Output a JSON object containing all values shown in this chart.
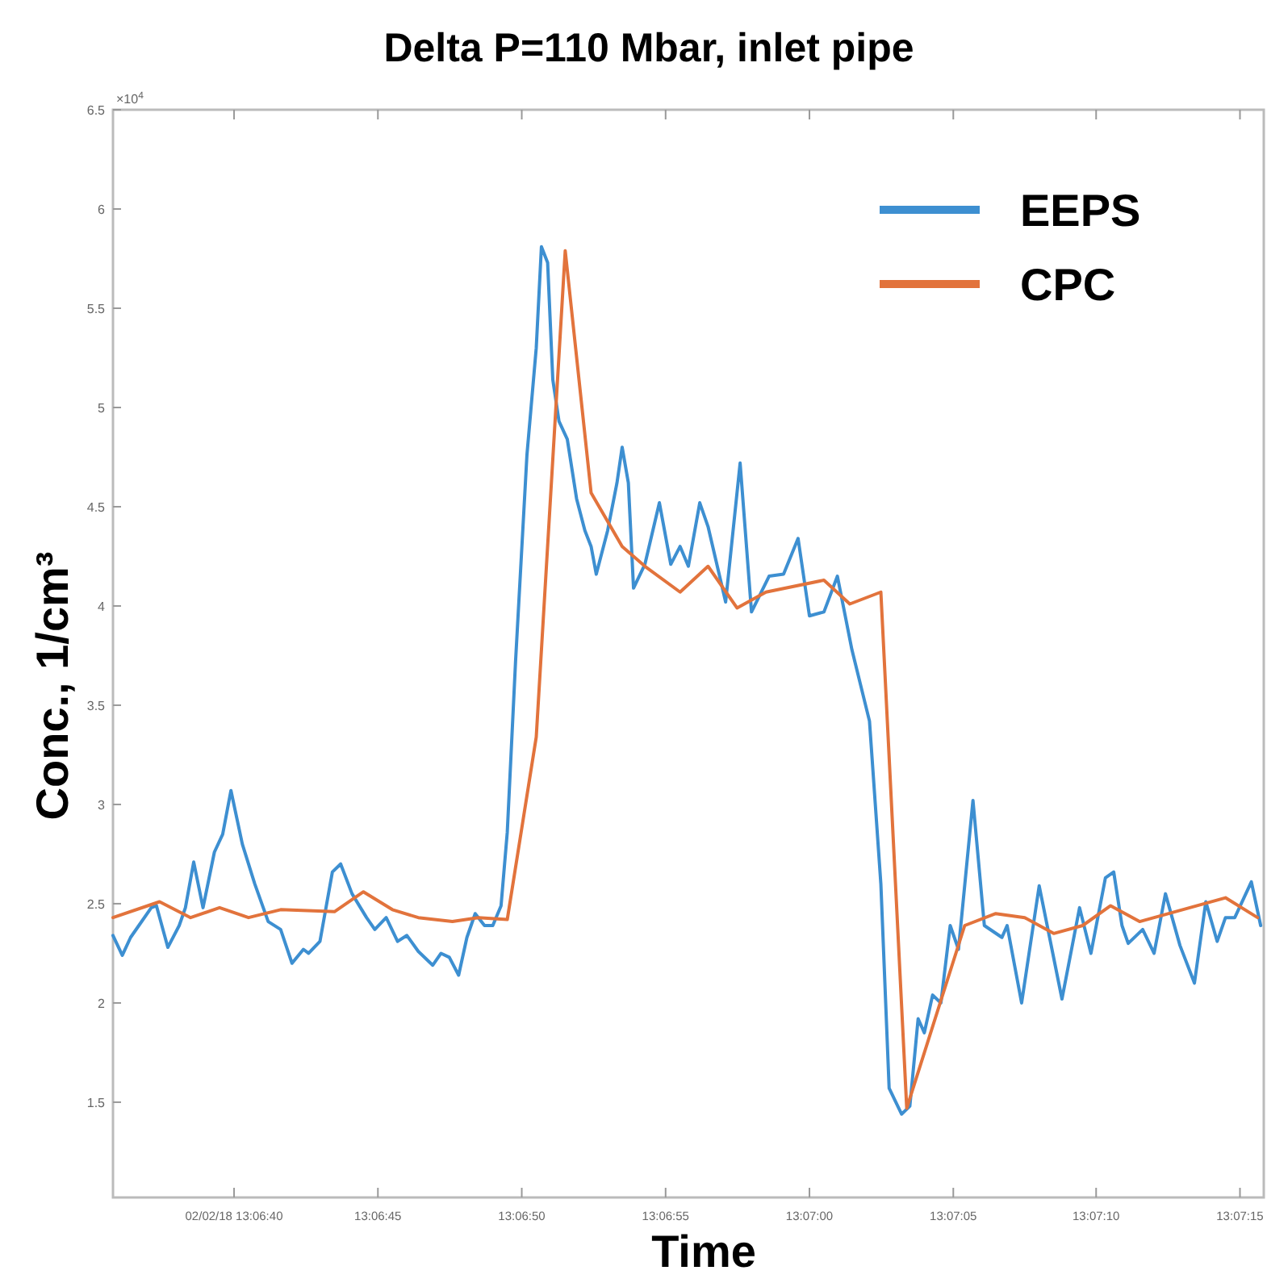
{
  "chart_data": {
    "type": "line",
    "title": "Delta P=110 Mbar, inlet pipe",
    "xlabel": "Time",
    "ylabel": "Conc., 1/cm³",
    "annotations": [
      "×10$^{4}$"
    ],
    "xlim": [
      13.10994,
      13.12106
    ],
    "xticks": [
      {
        "value": 13.11111,
        "label": "02/02/18 13:06:40"
      },
      {
        "value": 13.1125,
        "label": "13:06:45"
      },
      {
        "value": 13.11389,
        "label": "13:06:50"
      },
      {
        "value": 13.11528,
        "label": "13:06:55"
      },
      {
        "value": 13.11667,
        "label": "13:07:00"
      },
      {
        "value": 13.11806,
        "label": "13:07:05"
      },
      {
        "value": 13.11944,
        "label": "13:07:10"
      },
      {
        "value": 13.12083,
        "label": "13:07:15"
      }
    ],
    "ylim": [
      1.02,
      6.5
    ],
    "yticks": [
      1.5,
      2,
      2.5,
      3,
      3.5,
      4,
      4.5,
      5,
      5.5,
      6,
      6.5
    ],
    "grid": false,
    "legend": "top right",
    "marker": "none",
    "line_style": "solid",
    "series": [
      {
        "name": "EEPS",
        "color": "#3d8fd1",
        "x": [
          13.10994,
          13.11003,
          13.11011,
          13.11019,
          13.11031,
          13.11036,
          13.11047,
          13.11058,
          13.11064,
          13.11072,
          13.11081,
          13.11092,
          13.111,
          13.11108,
          13.11119,
          13.11131,
          13.11144,
          13.11156,
          13.11167,
          13.11178,
          13.11183,
          13.11194,
          13.11206,
          13.11214,
          13.11225,
          13.11239,
          13.11247,
          13.11258,
          13.11269,
          13.11278,
          13.11289,
          13.11303,
          13.11311,
          13.11319,
          13.11328,
          13.11336,
          13.11344,
          13.11353,
          13.11361,
          13.11369,
          13.11375,
          13.11383,
          13.11394,
          13.11403,
          13.11408,
          13.11414,
          13.11419,
          13.11425,
          13.11433,
          13.11442,
          13.1145,
          13.11456,
          13.11461,
          13.11472,
          13.11481,
          13.11486,
          13.11492,
          13.11497,
          13.11508,
          13.11522,
          13.11533,
          13.11542,
          13.1155,
          13.11561,
          13.11569,
          13.11586,
          13.116,
          13.11611,
          13.11628,
          13.11642,
          13.11656,
          13.11667,
          13.11681,
          13.11694,
          13.11708,
          13.11725,
          13.11736,
          13.11744,
          13.11756,
          13.11764,
          13.11772,
          13.11778,
          13.11786,
          13.11794,
          13.11803,
          13.11811,
          13.11825,
          13.11836,
          13.11853,
          13.11858,
          13.11872,
          13.11889,
          13.11911,
          13.11928,
          13.11939,
          13.11953,
          13.11961,
          13.11969,
          13.11975,
          13.11989,
          13.12,
          13.12011,
          13.12025,
          13.12039,
          13.1205,
          13.12061,
          13.12069,
          13.12078,
          13.12094,
          13.12103
        ],
        "values": [
          2.34,
          2.24,
          2.33,
          2.39,
          2.48,
          2.49,
          2.28,
          2.39,
          2.48,
          2.71,
          2.48,
          2.76,
          2.85,
          3.07,
          2.8,
          2.6,
          2.41,
          2.37,
          2.2,
          2.27,
          2.25,
          2.31,
          2.66,
          2.7,
          2.55,
          2.43,
          2.37,
          2.43,
          2.31,
          2.34,
          2.26,
          2.19,
          2.25,
          2.23,
          2.14,
          2.33,
          2.45,
          2.39,
          2.39,
          2.49,
          2.86,
          3.72,
          4.76,
          5.3,
          5.81,
          5.73,
          5.14,
          4.93,
          4.84,
          4.54,
          4.38,
          4.3,
          4.16,
          4.38,
          4.62,
          4.8,
          4.62,
          4.09,
          4.21,
          4.52,
          4.21,
          4.3,
          4.2,
          4.52,
          4.4,
          4.02,
          4.72,
          3.97,
          4.15,
          4.16,
          4.34,
          3.95,
          3.97,
          4.15,
          3.78,
          3.42,
          2.6,
          1.57,
          1.44,
          1.48,
          1.92,
          1.85,
          2.04,
          2.0,
          2.39,
          2.27,
          3.02,
          2.39,
          2.33,
          2.39,
          2.0,
          2.59,
          2.02,
          2.48,
          2.25,
          2.63,
          2.66,
          2.39,
          2.3,
          2.37,
          2.25,
          2.55,
          2.29,
          2.1,
          2.51,
          2.31,
          2.43,
          2.43,
          2.61,
          2.39
        ]
      },
      {
        "name": "CPC",
        "color": "#e2733c",
        "x": [
          13.10994,
          13.11039,
          13.11069,
          13.11097,
          13.11125,
          13.11156,
          13.11208,
          13.11236,
          13.11264,
          13.11289,
          13.11322,
          13.11347,
          13.11375,
          13.11403,
          13.11431,
          13.11456,
          13.11486,
          13.11508,
          13.11542,
          13.11569,
          13.11597,
          13.11625,
          13.11681,
          13.11706,
          13.11736,
          13.11761,
          13.11817,
          13.11847,
          13.11875,
          13.11903,
          13.11931,
          13.11958,
          13.11986,
          13.12069,
          13.121
        ],
        "values": [
          2.43,
          2.51,
          2.43,
          2.48,
          2.43,
          2.47,
          2.46,
          2.56,
          2.47,
          2.43,
          2.41,
          2.43,
          2.42,
          3.34,
          5.79,
          4.57,
          4.3,
          4.2,
          4.07,
          4.2,
          3.99,
          4.07,
          4.13,
          4.01,
          4.07,
          1.47,
          2.39,
          2.45,
          2.43,
          2.35,
          2.39,
          2.49,
          2.41,
          2.53,
          2.43
        ]
      }
    ]
  }
}
